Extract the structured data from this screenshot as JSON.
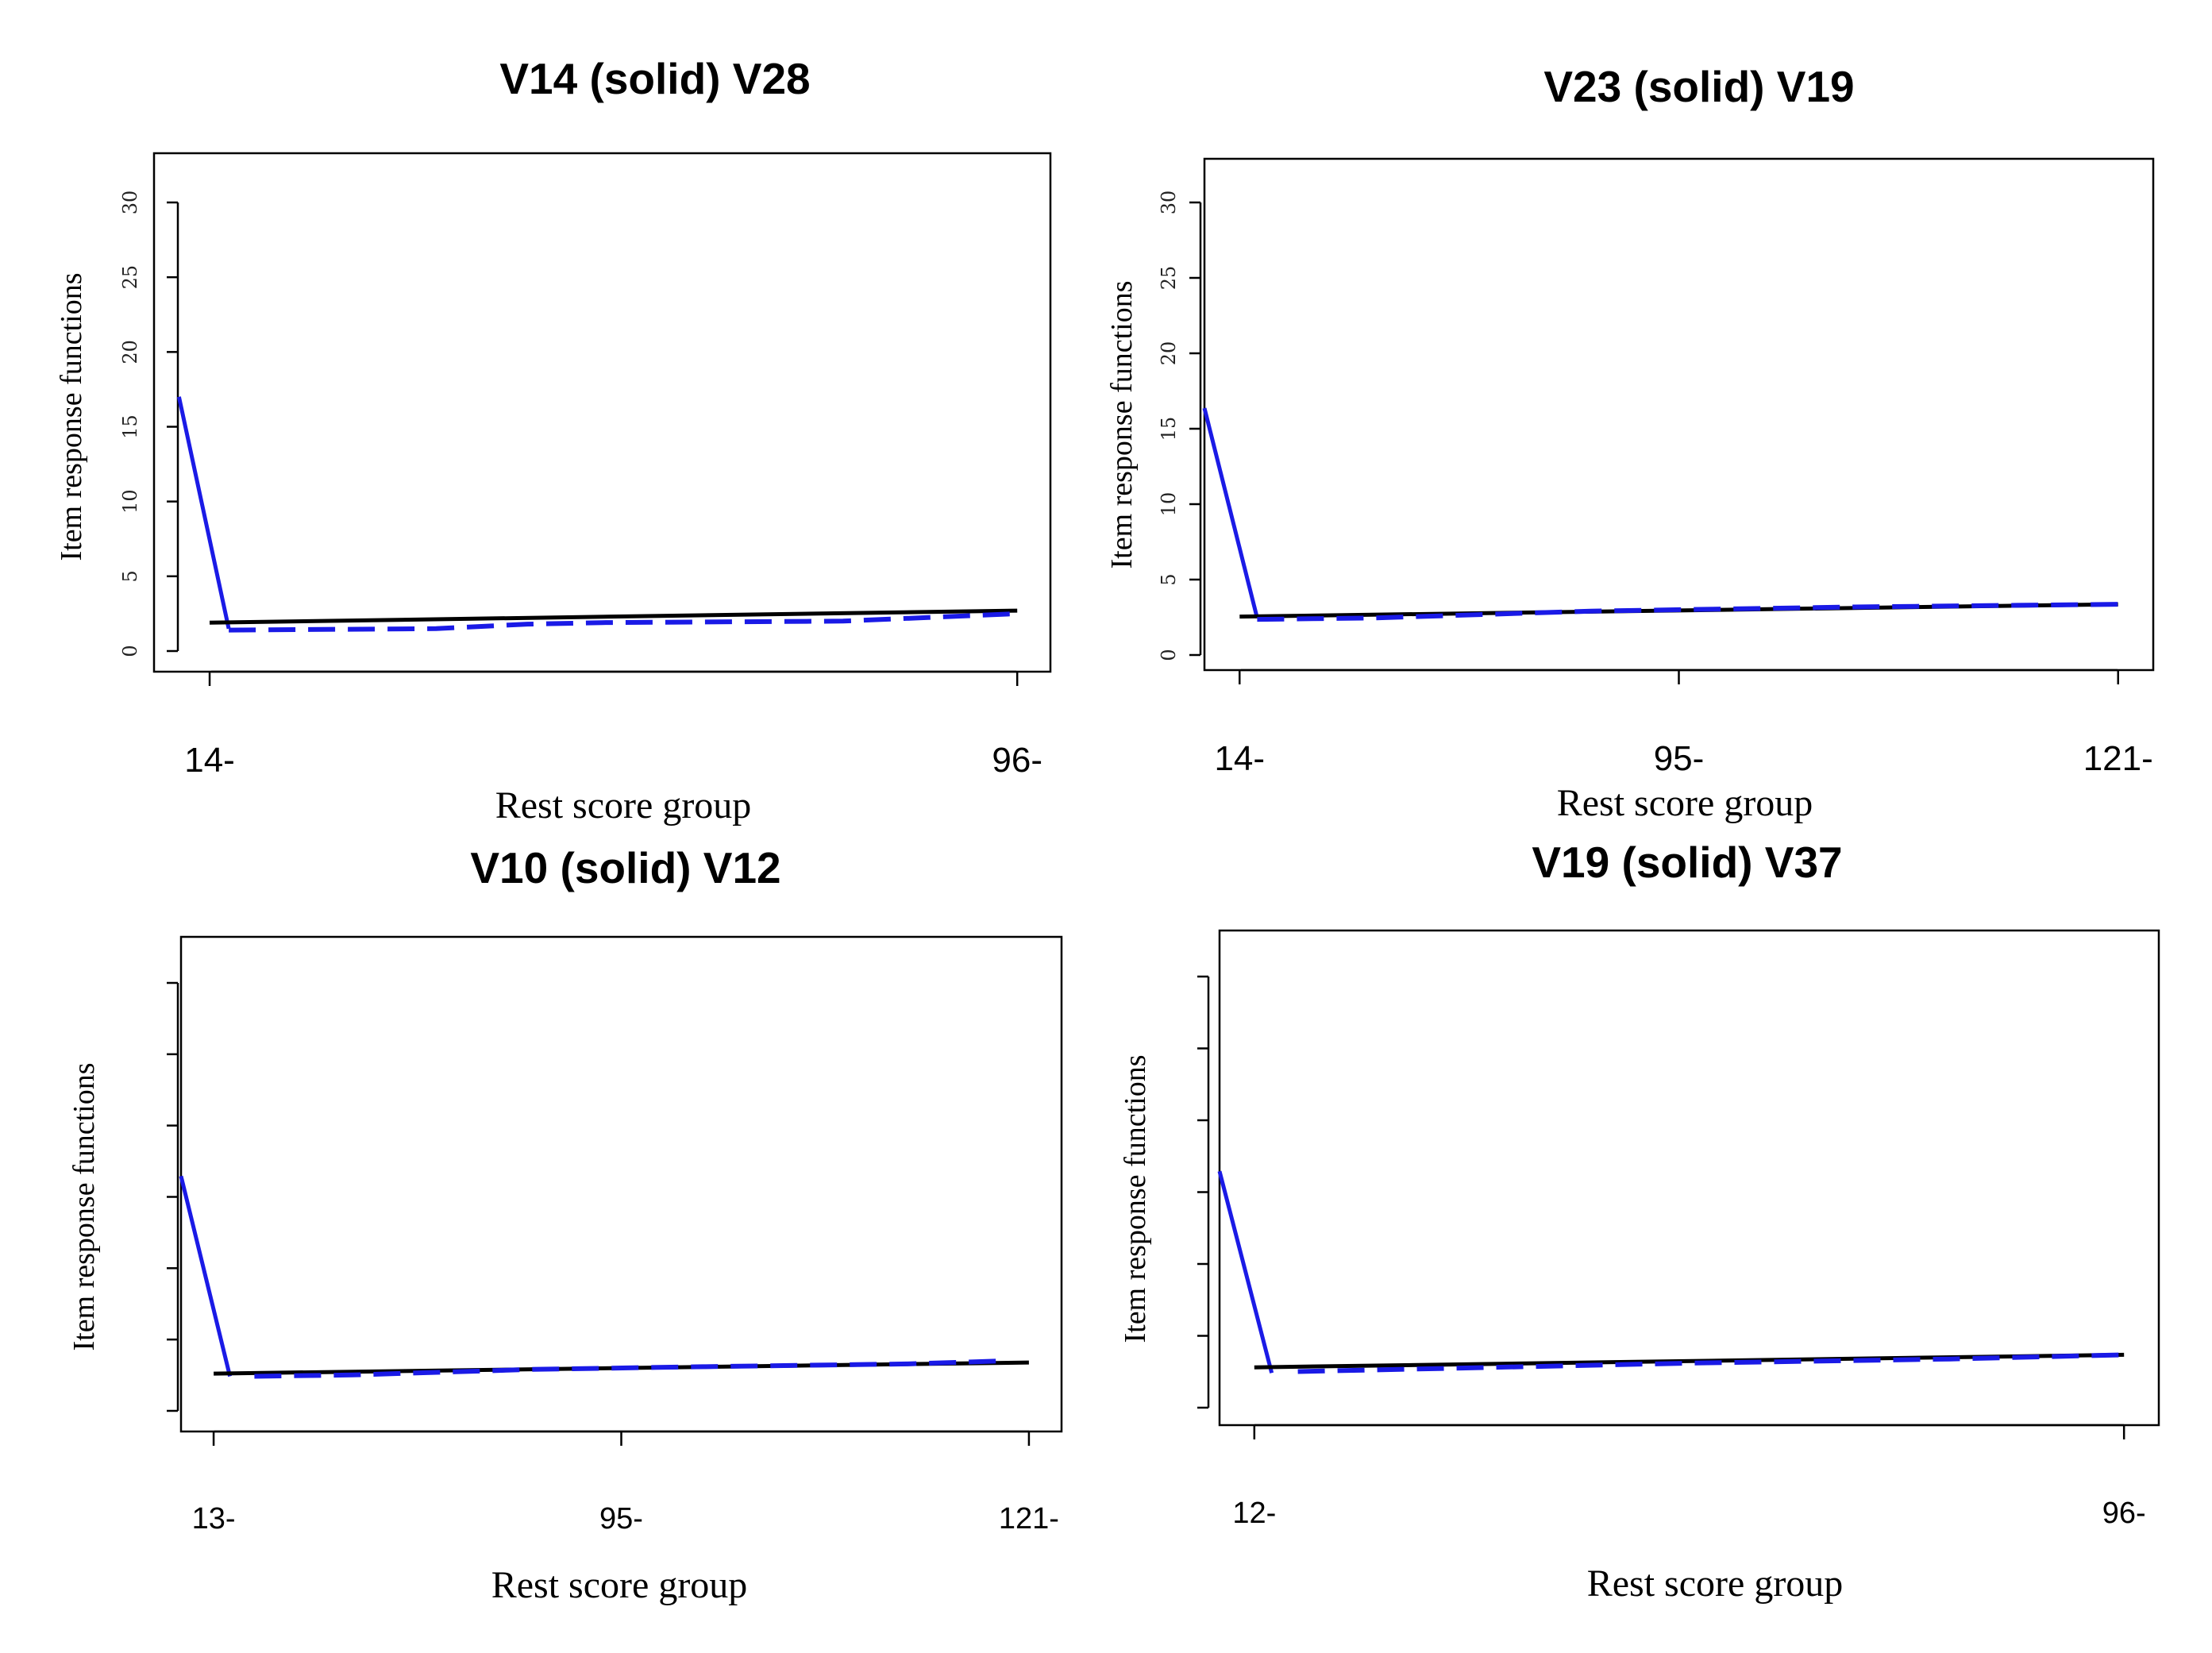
{
  "figure": {
    "colors": {
      "blue_line": "#1a1ae6",
      "black_line": "#000000"
    }
  },
  "chart_data": [
    {
      "type": "line",
      "title": "V14 (solid) V28",
      "xlabel": "Rest score group",
      "ylabel": "Item response functions",
      "ylim": [
        0,
        30
      ],
      "yticks": [
        "0",
        "5",
        "10",
        "15",
        "20",
        "25",
        "30"
      ],
      "x_tick_labels": [
        {
          "pos": 1.7,
          "label": "14-"
        },
        {
          "pos": 99.0,
          "label": "96-"
        }
      ],
      "xlim": [
        -5,
        103
      ],
      "series": [
        {
          "name": "blue solid",
          "style": "solid",
          "x": [
            -2,
            4
          ],
          "y": [
            17,
            1.5
          ]
        },
        {
          "name": "black solid",
          "style": "black",
          "x": [
            1.7,
            99.0
          ],
          "y": [
            1.9,
            2.7
          ]
        },
        {
          "name": "dashed",
          "style": "dashed",
          "x": [
            4,
            29,
            40,
            49,
            78,
            99.0
          ],
          "y": [
            1.4,
            1.5,
            1.8,
            1.9,
            2.0,
            2.5
          ]
        }
      ]
    },
    {
      "type": "line",
      "title": "V23 (solid) V19",
      "xlabel": "Rest score group",
      "ylabel": "Item response functions",
      "ylim": [
        -1,
        32
      ],
      "yticks": [
        "30",
        "25",
        "20",
        "15",
        "10",
        "5",
        "0"
      ],
      "x_tick_labels": [
        {
          "pos": 0,
          "label": "14-"
        },
        {
          "pos": 50,
          "label": "95-"
        },
        {
          "pos": 100,
          "label": "121-"
        }
      ],
      "xlim": [
        -4,
        104
      ],
      "series": [
        {
          "name": "blue solid",
          "style": "solid",
          "x": [
            -4,
            2
          ],
          "y": [
            17,
            1.7
          ]
        },
        {
          "name": "black solid",
          "style": "black",
          "x": [
            0,
            100
          ],
          "y": [
            1.8,
            2.7
          ]
        },
        {
          "name": "dashed",
          "style": "dashed",
          "x": [
            2,
            15,
            40,
            70,
            100
          ],
          "y": [
            1.6,
            1.7,
            2.2,
            2.5,
            2.7
          ]
        }
      ]
    },
    {
      "type": "line",
      "title": "V10 (solid) V12",
      "xlabel": "Rest score group",
      "ylabel": "Item response functions",
      "ylim": [
        -1,
        30
      ],
      "yticks": [
        "",
        "",
        "",
        "",
        "",
        "",
        ""
      ],
      "x_tick_labels": [
        {
          "pos": 0,
          "label": "13-"
        },
        {
          "pos": 50,
          "label": "95-"
        },
        {
          "pos": 100,
          "label": "121-"
        }
      ],
      "xlim": [
        -4,
        104
      ],
      "series": [
        {
          "name": "blue solid",
          "style": "solid",
          "x": [
            -4,
            2
          ],
          "y": [
            16,
            1.5
          ]
        },
        {
          "name": "black solid",
          "style": "black",
          "x": [
            0,
            100
          ],
          "y": [
            1.7,
            2.5
          ]
        },
        {
          "name": "dashed",
          "style": "dashed",
          "x": [
            5,
            17,
            39,
            60,
            85,
            96
          ],
          "y": [
            1.5,
            1.6,
            2.0,
            2.2,
            2.4,
            2.6
          ]
        }
      ]
    },
    {
      "type": "line",
      "title": "V19 (solid) V37",
      "xlabel": "Rest score group",
      "ylabel": "Item response functions",
      "ylim": [
        -1,
        30
      ],
      "yticks": [
        "",
        "",
        "",
        "",
        "",
        "",
        ""
      ],
      "x_tick_labels": [
        {
          "pos": 0,
          "label": "12-"
        },
        {
          "pos": 100,
          "label": "96-"
        }
      ],
      "xlim": [
        -4,
        104
      ],
      "series": [
        {
          "name": "blue solid",
          "style": "solid",
          "x": [
            -4,
            2
          ],
          "y": [
            16,
            1.5
          ]
        },
        {
          "name": "black solid",
          "style": "black",
          "x": [
            0,
            100
          ],
          "y": [
            1.9,
            2.8
          ]
        },
        {
          "name": "dashed",
          "style": "dashed",
          "x": [
            5,
            20,
            50,
            80,
            100
          ],
          "y": [
            1.6,
            1.8,
            2.2,
            2.5,
            2.8
          ]
        }
      ]
    }
  ]
}
